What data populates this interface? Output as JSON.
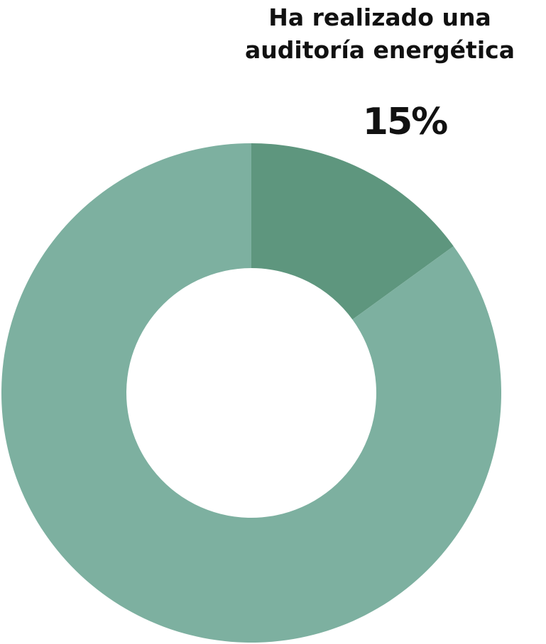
{
  "chart_data": {
    "type": "pie",
    "variant": "donut",
    "title_lines": [
      "Ha realizado una",
      "auditoría energética"
    ],
    "slices": [
      {
        "value": 15,
        "label": "15%",
        "color": "#5e967e"
      },
      {
        "value": 85,
        "label": "",
        "color": "#7db0a0"
      }
    ],
    "start": "12 o'clock",
    "direction": "clockwise",
    "legend": "none"
  }
}
